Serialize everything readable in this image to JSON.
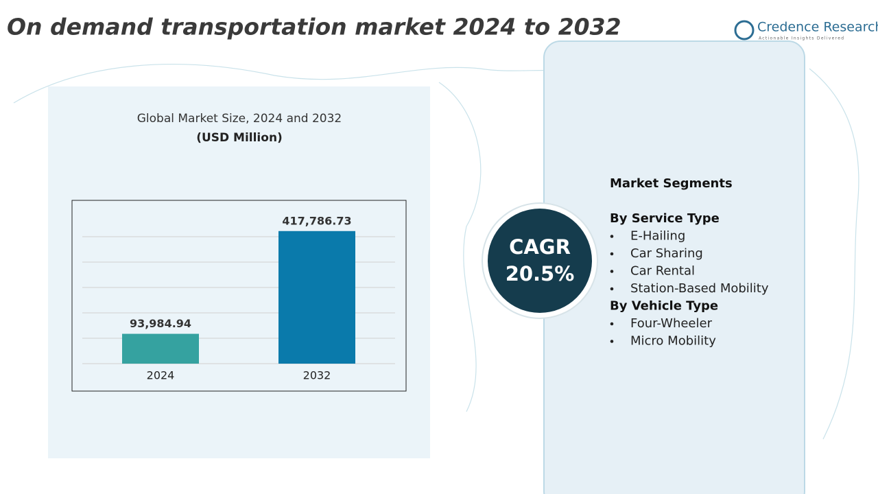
{
  "header": {
    "title": "On demand transportation market 2024 to 2032",
    "logo": {
      "name": "Credence Research",
      "tagline": "Actionable Insights Delivered"
    }
  },
  "chart_data": {
    "type": "bar",
    "title": "Global Market Size, 2024 and 2032",
    "subtitle": "(USD Million)",
    "categories": [
      "2024",
      "2032"
    ],
    "series": [
      {
        "colors": [
          "#35a2a0",
          "#0a7aab"
        ],
        "values": [
          93984.94,
          417786.73
        ],
        "value_labels": [
          "93,984.94",
          "417,786.73"
        ]
      }
    ],
    "ylim": [
      0,
      480000
    ],
    "yticks": [
      0,
      80000,
      160000,
      240000,
      320000,
      400000
    ],
    "grid": true
  },
  "cagr": {
    "label": "CAGR",
    "value": "20.5%"
  },
  "segments": {
    "heading": "Market Segments",
    "groups": [
      {
        "title": "By Service Type",
        "items": [
          "E-Hailing",
          "Car Sharing",
          "Car Rental",
          "Station-Based Mobility"
        ]
      },
      {
        "title": "By Vehicle Type",
        "items": [
          "Four-Wheeler",
          "Micro Mobility"
        ]
      }
    ]
  }
}
